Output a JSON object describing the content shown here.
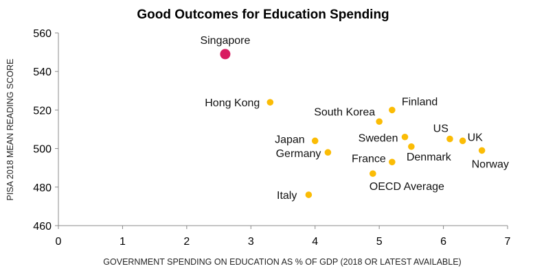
{
  "chart_data": {
    "type": "scatter",
    "title": "Good Outcomes for Education Spending",
    "xlabel": "GOVERNMENT SPENDING ON EDUCATION AS % OF GDP (2018 OR LATEST AVAILABLE)",
    "ylabel": "PISA 2018 MEAN READING SCORE",
    "xlim": [
      0,
      7
    ],
    "ylim": [
      460,
      560
    ],
    "xticks": [
      0,
      1,
      2,
      3,
      4,
      5,
      6,
      7
    ],
    "yticks": [
      460,
      480,
      500,
      520,
      540,
      560
    ],
    "grid": false,
    "highlight_color": "#d81b60",
    "point_color": "#fbbc05",
    "points": [
      {
        "label": "Singapore",
        "x": 2.6,
        "y": 549,
        "highlight": true
      },
      {
        "label": "Hong Kong",
        "x": 3.3,
        "y": 524
      },
      {
        "label": "Finland",
        "x": 5.2,
        "y": 520
      },
      {
        "label": "South Korea",
        "x": 5.0,
        "y": 514
      },
      {
        "label": "Japan",
        "x": 4.0,
        "y": 504
      },
      {
        "label": "Germany",
        "x": 4.2,
        "y": 498
      },
      {
        "label": "Sweden",
        "x": 5.4,
        "y": 506
      },
      {
        "label": "Denmark",
        "x": 5.5,
        "y": 501
      },
      {
        "label": "US",
        "x": 6.1,
        "y": 505
      },
      {
        "label": "UK",
        "x": 6.3,
        "y": 504
      },
      {
        "label": "Norway",
        "x": 6.6,
        "y": 499
      },
      {
        "label": "France",
        "x": 5.2,
        "y": 493
      },
      {
        "label": "OECD Average",
        "x": 4.9,
        "y": 487
      },
      {
        "label": "Italy",
        "x": 3.9,
        "y": 476
      }
    ]
  }
}
